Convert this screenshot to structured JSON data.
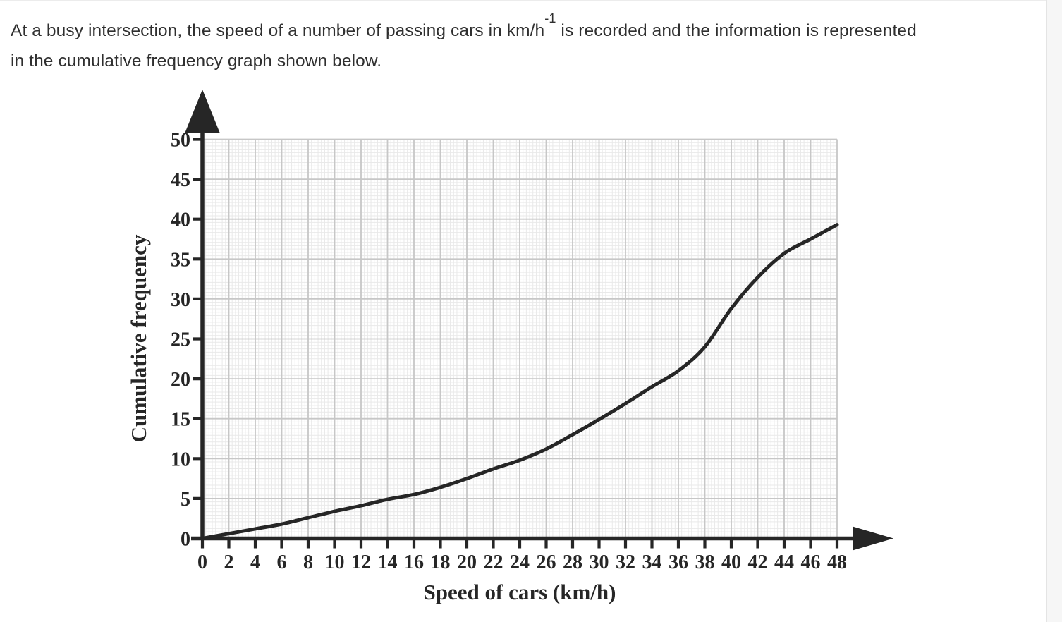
{
  "question": {
    "line1_pre": "At a busy intersection, the speed of a number of passing cars in km/h",
    "superscript": "-1",
    "line1_post": " is recorded and the information is represented",
    "line2": "in the cumulative frequency graph shown below."
  },
  "chart_data": {
    "type": "line",
    "title": "",
    "xlabel": "Speed of cars (km/h)",
    "ylabel": "Cumulative frequency",
    "xlim": [
      0,
      48
    ],
    "ylim": [
      0,
      50
    ],
    "x_ticks": [
      0,
      2,
      4,
      6,
      8,
      10,
      12,
      14,
      16,
      18,
      20,
      22,
      24,
      26,
      28,
      30,
      32,
      34,
      36,
      38,
      40,
      42,
      44,
      46,
      48
    ],
    "y_ticks": [
      0,
      5,
      10,
      15,
      20,
      25,
      30,
      35,
      40,
      45,
      50
    ],
    "grid": "fine square graph-paper minor grid with darker major gridlines at every axis tick",
    "legend": "none",
    "axes_style": "thick black axis lines with solid triangular arrowheads (up on y-axis, right on x-axis)",
    "series": [
      {
        "name": "Cumulative frequency of car speeds",
        "x": [
          0,
          2,
          4,
          6,
          8,
          10,
          12,
          14,
          16,
          18,
          20,
          22,
          24,
          26,
          28,
          30,
          32,
          34,
          36,
          38,
          40,
          42,
          44,
          46,
          48
        ],
        "y": [
          0,
          0.6,
          1.2,
          1.8,
          2.6,
          3.4,
          4.1,
          4.9,
          5.5,
          6.4,
          7.5,
          8.7,
          9.8,
          11.2,
          13.0,
          14.9,
          16.9,
          19.0,
          21.0,
          24.0,
          28.8,
          32.7,
          35.7,
          37.5,
          39.3
        ]
      }
    ]
  },
  "colors": {
    "ink": "#262626",
    "text": "#2f2f2f",
    "major_grid": "#c7c7c7",
    "minor_grid": "#e9e9e9",
    "background": "#ffffff",
    "scrollbar_track": "#f6f6f6"
  }
}
